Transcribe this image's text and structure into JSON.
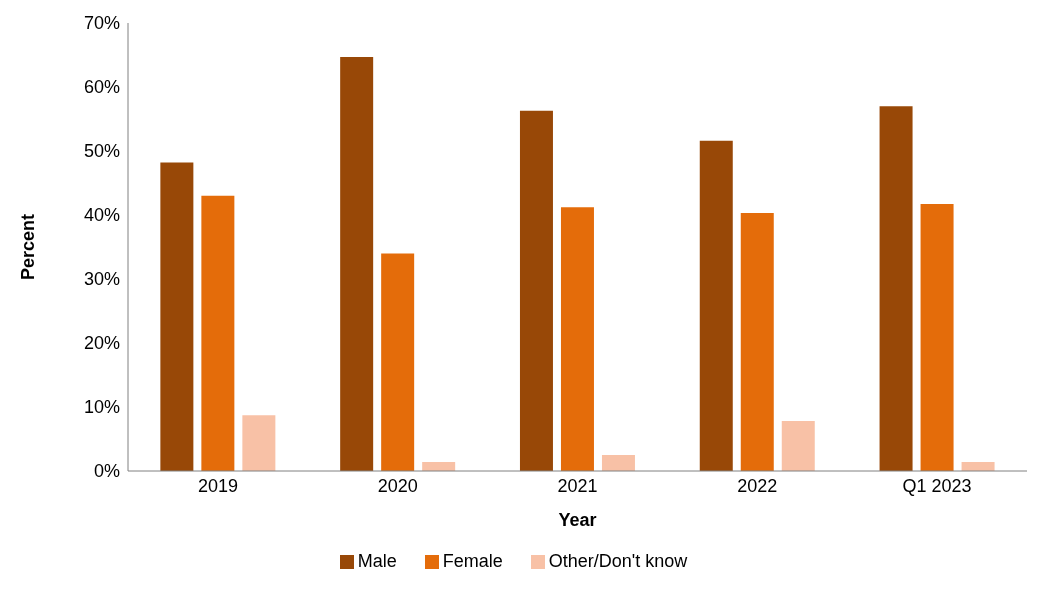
{
  "chart_data": {
    "type": "bar",
    "xlabel": "Year",
    "ylabel": "Percent",
    "categories": [
      "2019",
      "2020",
      "2021",
      "2022",
      "Q1 2023"
    ],
    "series": [
      {
        "name": "Male",
        "color": "#984807",
        "values": [
          48.2,
          64.7,
          56.3,
          51.6,
          57.0
        ]
      },
      {
        "name": "Female",
        "color": "#e46c0a",
        "values": [
          43.0,
          34.0,
          41.2,
          40.3,
          41.7
        ]
      },
      {
        "name": "Other/Don't know",
        "color": "#f8c1a6",
        "values": [
          8.7,
          1.4,
          2.5,
          7.8,
          1.4
        ]
      }
    ],
    "ylim": [
      0,
      70
    ],
    "yticks": [
      {
        "value": 0,
        "label": "0%"
      },
      {
        "value": 10,
        "label": "10%"
      },
      {
        "value": 20,
        "label": "20%"
      },
      {
        "value": 30,
        "label": "30%"
      },
      {
        "value": 40,
        "label": "40%"
      },
      {
        "value": 50,
        "label": "50%"
      },
      {
        "value": 60,
        "label": "60%"
      },
      {
        "value": 70,
        "label": "70%"
      }
    ],
    "grid": false,
    "legend": "bottom"
  }
}
